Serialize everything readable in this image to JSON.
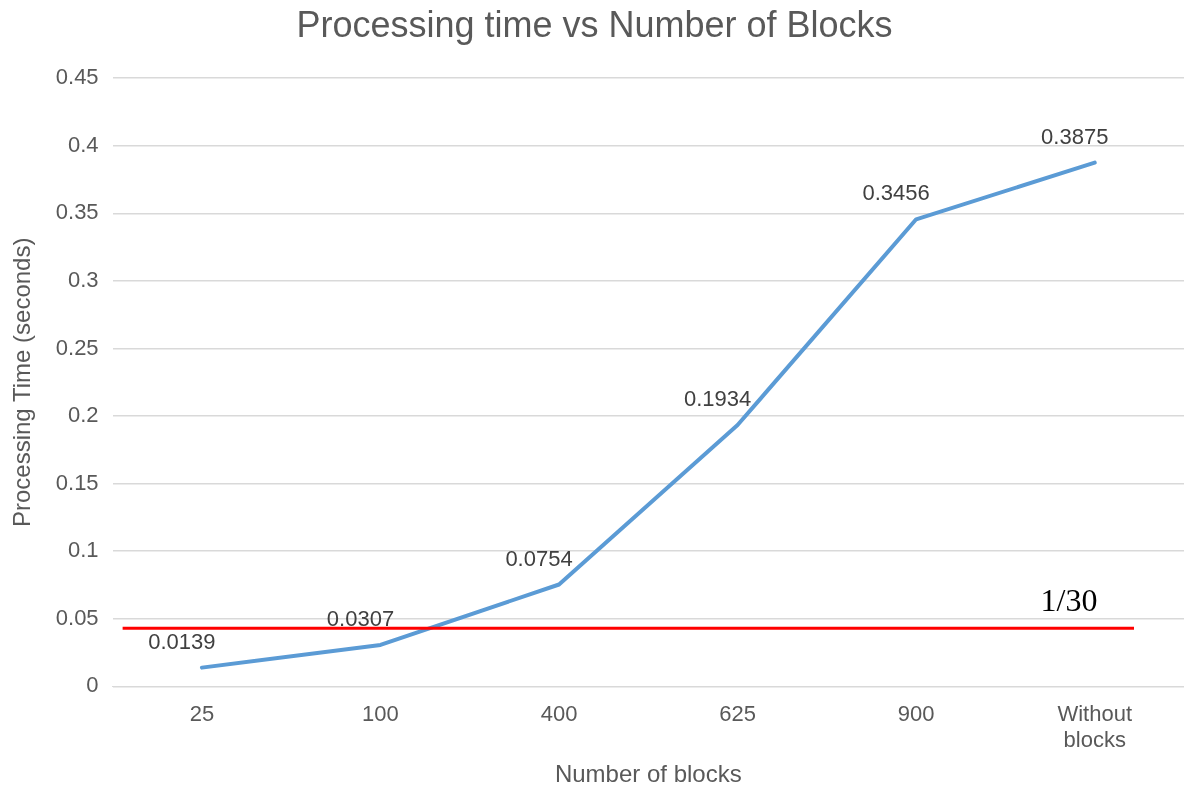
{
  "chart_data": {
    "type": "line",
    "title": "Processing time vs Number of Blocks",
    "xlabel": "Number of blocks",
    "ylabel": "Processing Time (seconds)",
    "categories": [
      "25",
      "100",
      "400",
      "625",
      "900",
      "Without blocks"
    ],
    "series": [
      {
        "color": "#5b9bd5",
        "values": [
          0.0139,
          0.0307,
          0.0754,
          0.1934,
          0.3456,
          0.3875
        ]
      }
    ],
    "ylim": [
      0,
      0.45
    ],
    "yticks": [
      0,
      0.05,
      0.1,
      0.15,
      0.2,
      0.25,
      0.3,
      0.35,
      0.4,
      0.45
    ],
    "grid": "y",
    "legend": false,
    "marker": "none",
    "line_style": "solid",
    "data_labels": true,
    "ref_lines": [
      {
        "axis": "y",
        "value": 0.043,
        "color": "#ff0000"
      }
    ],
    "annotations": [
      "1/30"
    ]
  }
}
